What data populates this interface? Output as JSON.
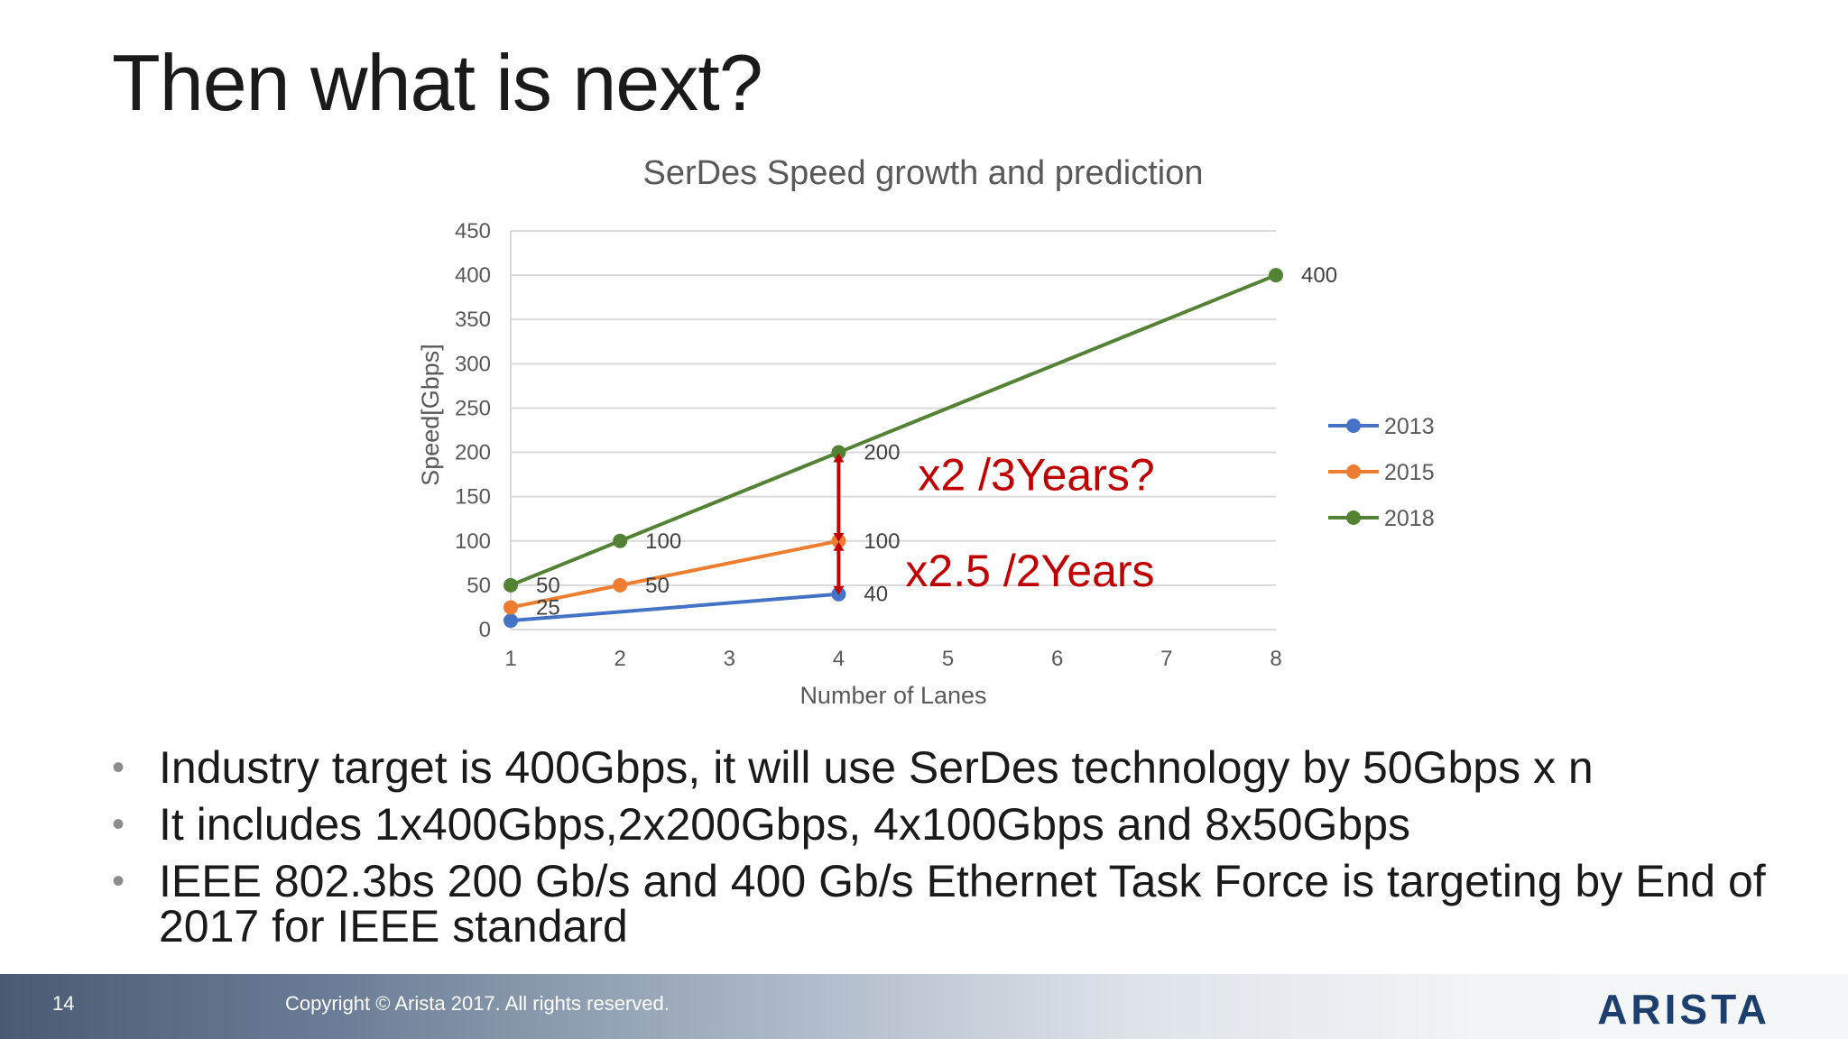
{
  "slide": {
    "title": "Then what is next?",
    "page_number": "14",
    "copyright": "Copyright © Arista 2017. All rights reserved.",
    "logo_text": "ARISTA"
  },
  "bullets": [
    "Industry target  is 400Gbps, it will use SerDes technology by 50Gbps x n",
    "It includes 1x400Gbps,2x200Gbps, 4x100Gbps and 8x50Gbps",
    "IEEE 802.3bs 200 Gb/s and 400 Gb/s Ethernet Task Force is targeting by End of 2017 for IEEE standard"
  ],
  "bullet_glyph": "•",
  "chart_data": {
    "type": "line",
    "title": "SerDes Speed growth and prediction",
    "xlabel": "Number of  Lanes",
    "ylabel": "Speed[Gbps]",
    "x_ticks": [
      1,
      2,
      3,
      4,
      5,
      6,
      7,
      8
    ],
    "x_scale": "categorical",
    "ylim": [
      0,
      450
    ],
    "y_ticks": [
      0,
      50,
      100,
      150,
      200,
      250,
      300,
      350,
      400,
      450
    ],
    "grid": "horizontal",
    "legend_position": "right",
    "series": [
      {
        "name": "2013",
        "color": "#4472c4",
        "x": [
          1,
          4
        ],
        "y": [
          10,
          40
        ],
        "labels": [
          "",
          "40"
        ]
      },
      {
        "name": "2015",
        "color": "#ed7d31",
        "x": [
          1,
          2,
          4
        ],
        "y": [
          25,
          50,
          100
        ],
        "labels": [
          "25",
          "50",
          "100"
        ]
      },
      {
        "name": "2018",
        "color": "#548235",
        "x": [
          1,
          2,
          4,
          8
        ],
        "y": [
          50,
          100,
          200,
          400
        ],
        "labels": [
          "50",
          "100",
          "200",
          "400"
        ]
      }
    ],
    "annotations": [
      {
        "text": "x2 /3Years?",
        "color": "#c00000",
        "x": 4,
        "y": 200,
        "arrow_from": 100,
        "arrow_to": 200
      },
      {
        "text": "x2.5 /2Years",
        "color": "#c00000",
        "x": 4,
        "y": 100,
        "arrow_from": 40,
        "arrow_to": 100
      }
    ]
  }
}
